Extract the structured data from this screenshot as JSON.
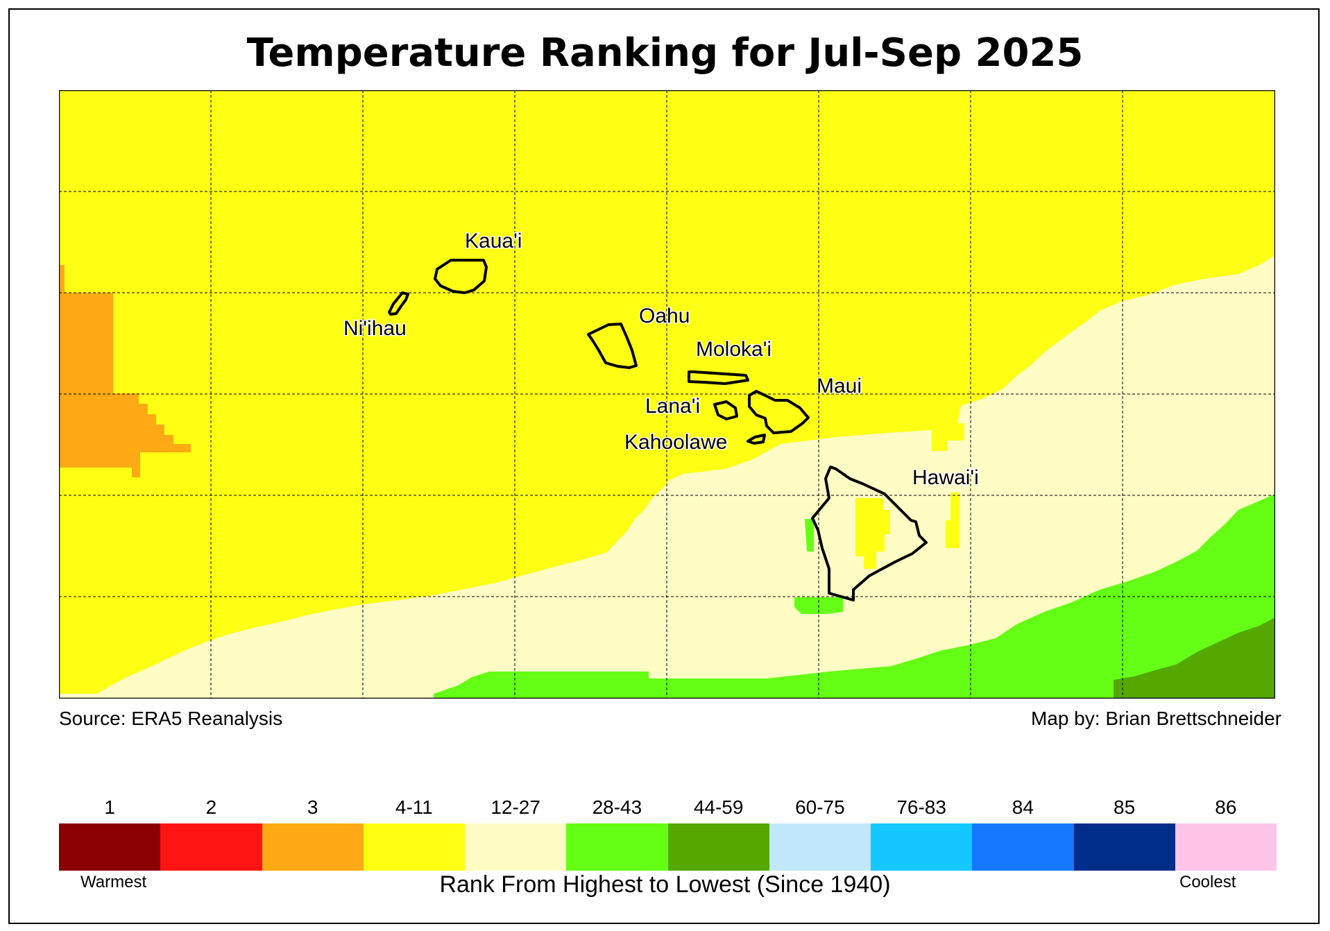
{
  "title": "Temperature Ranking for Jul-Sep 2025",
  "source": "Source: ERA5 Reanalysis",
  "credit": "Map by: Brian Brettschneider",
  "islands": [
    {
      "name": "Kaua'i"
    },
    {
      "name": "Ni'ihau"
    },
    {
      "name": "Oahu"
    },
    {
      "name": "Moloka'i"
    },
    {
      "name": "Maui"
    },
    {
      "name": "Lana'i"
    },
    {
      "name": "Kahoolawe"
    },
    {
      "name": "Hawai'i"
    }
  ],
  "legend": {
    "title": "Rank From Highest to Lowest (Since 1940)",
    "low_label": "Warmest",
    "high_label": "Coolest",
    "bins": [
      {
        "label": "1",
        "color": "#8b0000"
      },
      {
        "label": "2",
        "color": "#ff1414"
      },
      {
        "label": "3",
        "color": "#ffaa14"
      },
      {
        "label": "4-11",
        "color": "#ffff14"
      },
      {
        "label": "12-27",
        "color": "#fffcc4"
      },
      {
        "label": "28-43",
        "color": "#64ff14"
      },
      {
        "label": "44-59",
        "color": "#54a800"
      },
      {
        "label": "60-75",
        "color": "#c0e8fa"
      },
      {
        "label": "76-83",
        "color": "#14c8ff"
      },
      {
        "label": "84",
        "color": "#1478ff"
      },
      {
        "label": "85",
        "color": "#002d8a"
      },
      {
        "label": "86",
        "color": "#ffc4e8"
      }
    ]
  }
}
